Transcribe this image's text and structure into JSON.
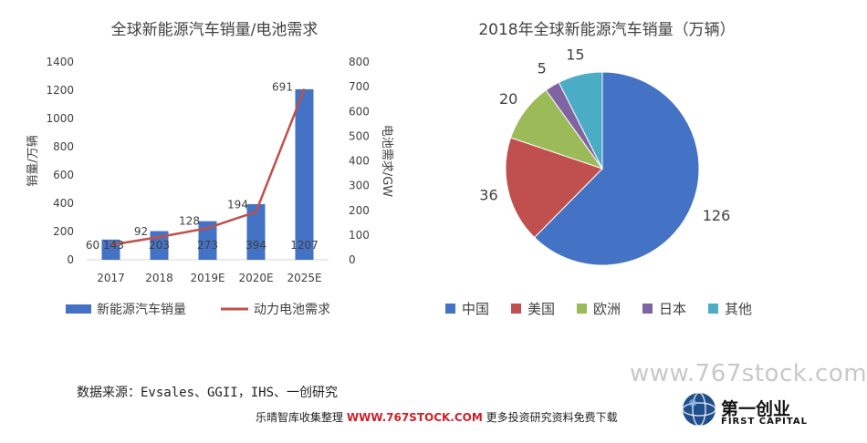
{
  "left_chart_title": "全球新能源汽车销量/电池需求",
  "right_chart_title": "2018年全球新能源汽车销量（万辆）",
  "chart_data": [
    {
      "type": "bar",
      "title": "全球新能源汽车销量/电池需求",
      "categories": [
        "2017",
        "2018",
        "2019E",
        "2020E",
        "2025E"
      ],
      "ylabel": "销量/万辆",
      "y2label": "电池需求/GW",
      "ylim": [
        0,
        1400
      ],
      "y2lim": [
        0,
        800
      ],
      "yticks": [
        "0",
        "200",
        "400",
        "600",
        "800",
        "1000",
        "1200",
        "1400"
      ],
      "y2ticks": [
        "0",
        "100",
        "200",
        "300",
        "400",
        "500",
        "600",
        "700",
        "800"
      ],
      "series": [
        {
          "name": "新能源汽车销量",
          "type": "bar",
          "axis": "left",
          "color": "#4472C4",
          "values": [
            143,
            203,
            273,
            394,
            1207
          ],
          "labels": [
            "143",
            "203",
            "273",
            "394",
            "1207"
          ]
        },
        {
          "name": "动力电池需求",
          "type": "line",
          "axis": "right",
          "color": "#C0504D",
          "values": [
            60,
            92,
            128,
            194,
            691
          ],
          "labels": [
            "60",
            "92",
            "128",
            "194",
            "691"
          ]
        }
      ],
      "legend_position": "bottom"
    },
    {
      "type": "pie",
      "title": "2018年全球新能源汽车销量（万辆）",
      "categories": [
        "中国",
        "美国",
        "欧洲",
        "日本",
        "其他"
      ],
      "values": [
        126,
        36,
        20,
        5,
        15
      ],
      "colors": [
        "#4472C4",
        "#C0504D",
        "#9BBB59",
        "#8064A2",
        "#4BACC6"
      ],
      "legend_position": "bottom"
    }
  ],
  "source_text": "数据来源：Evsales、GGII，IHS、一创研究",
  "footer": {
    "prefix": "乐晴智库收集整理",
    "site": "WWW.767STOCK.COM",
    "suffix": "更多投资研究资料免费下载"
  },
  "watermark": "www.767stock.com",
  "brand": {
    "cn": "第一创业",
    "en": "FIRST CAPITAL"
  }
}
